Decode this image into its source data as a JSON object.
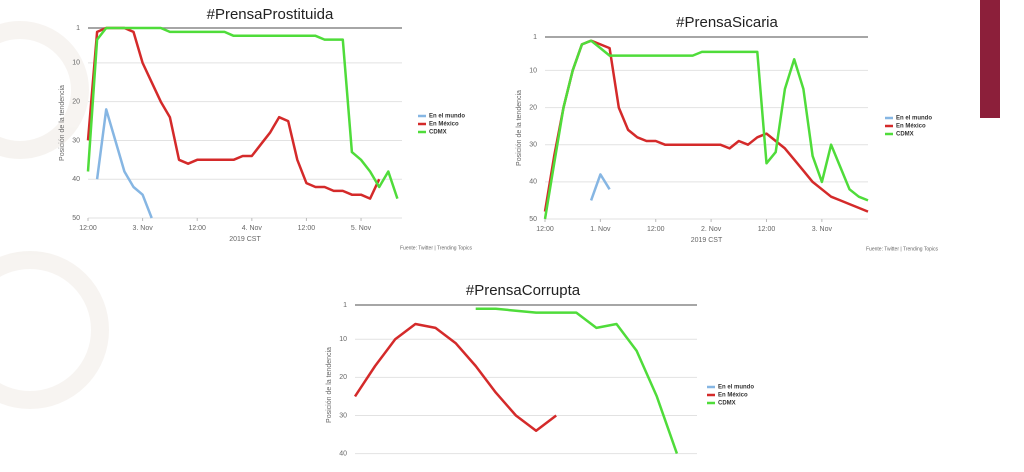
{
  "chart_data": [
    {
      "type": "line",
      "title": "#PrensaProstituida",
      "y_label": "Posición de la tendencia",
      "x_label": "2019 CST",
      "source": "Fuente: Twitter | Trending Topics",
      "x": [
        0,
        2,
        4,
        6,
        8,
        10,
        12,
        14,
        16,
        18,
        20,
        22,
        24,
        26,
        28,
        30,
        32,
        34,
        36,
        38,
        40,
        42,
        44,
        46,
        48,
        50,
        52,
        54,
        56,
        58,
        60,
        62,
        64,
        66,
        68
      ],
      "xlim": [
        0,
        69
      ],
      "ylim": [
        50,
        1
      ],
      "yticks": [
        1,
        10,
        20,
        30,
        40,
        50
      ],
      "grid": true,
      "xticks": [
        {
          "value": 0,
          "label": "12:00"
        },
        {
          "value": 12,
          "label": "3. Nov"
        },
        {
          "value": 24,
          "label": "12:00"
        },
        {
          "value": 36,
          "label": "4. Nov"
        },
        {
          "value": 48,
          "label": "12:00"
        },
        {
          "value": 60,
          "label": "5. Nov"
        }
      ],
      "series": [
        {
          "name": "En el mundo",
          "color": "#86b6e3",
          "values": [
            null,
            40,
            22,
            30,
            38,
            42,
            44,
            50,
            null,
            null,
            null,
            null,
            null,
            null,
            null,
            null,
            null,
            null,
            null,
            null,
            null,
            null,
            null,
            null,
            null,
            null,
            null,
            null,
            null,
            null,
            null,
            null,
            null,
            null,
            null
          ]
        },
        {
          "name": "En México",
          "color": "#d42a2a",
          "values": [
            30,
            2,
            1,
            1,
            1,
            2,
            10,
            15,
            20,
            24,
            35,
            36,
            35,
            35,
            35,
            35,
            35,
            34,
            34,
            31,
            28,
            24,
            25,
            35,
            41,
            42,
            42,
            43,
            43,
            44,
            44,
            45,
            40,
            null,
            null
          ]
        },
        {
          "name": "CDMX",
          "color": "#4fdc3a",
          "values": [
            38,
            4,
            1,
            1,
            1,
            1,
            1,
            1,
            1,
            2,
            2,
            2,
            2,
            2,
            2,
            2,
            3,
            3,
            3,
            3,
            3,
            3,
            3,
            3,
            3,
            3,
            4,
            4,
            4,
            33,
            35,
            38,
            42,
            38,
            45
          ]
        }
      ]
    },
    {
      "type": "line",
      "title": "#PrensaSicaria",
      "y_label": "Posición de la tendencia",
      "x_label": "2019 CST",
      "source": "Fuente: Twitter | Trending Topics",
      "x": [
        0,
        2,
        4,
        6,
        8,
        10,
        12,
        14,
        16,
        18,
        20,
        22,
        24,
        26,
        28,
        30,
        32,
        34,
        36,
        38,
        40,
        42,
        44,
        46,
        48,
        50,
        52,
        54,
        56,
        58,
        60,
        62,
        64,
        66,
        68,
        70
      ],
      "xlim": [
        0,
        70
      ],
      "ylim": [
        50,
        1
      ],
      "yticks": [
        1,
        10,
        20,
        30,
        40,
        50
      ],
      "grid": true,
      "xticks": [
        {
          "value": 0,
          "label": "12:00"
        },
        {
          "value": 12,
          "label": "1. Nov"
        },
        {
          "value": 24,
          "label": "12:00"
        },
        {
          "value": 36,
          "label": "2. Nov"
        },
        {
          "value": 48,
          "label": "12:00"
        },
        {
          "value": 60,
          "label": "3. Nov"
        }
      ],
      "series": [
        {
          "name": "En el mundo",
          "color": "#86b6e3",
          "values": [
            null,
            null,
            null,
            null,
            null,
            45,
            38,
            42,
            null,
            null,
            null,
            null,
            null,
            null,
            null,
            null,
            null,
            null,
            null,
            null,
            null,
            null,
            null,
            null,
            null,
            null,
            null,
            null,
            null,
            null,
            null,
            null,
            null,
            null,
            null,
            null
          ]
        },
        {
          "name": "En México",
          "color": "#d42a2a",
          "values": [
            48,
            33,
            20,
            10,
            3,
            2,
            3,
            4,
            20,
            26,
            28,
            29,
            29,
            30,
            30,
            30,
            30,
            30,
            30,
            30,
            31,
            29,
            30,
            28,
            27,
            29,
            31,
            34,
            37,
            40,
            42,
            44,
            45,
            46,
            47,
            48
          ]
        },
        {
          "name": "CDMX",
          "color": "#4fdc3a",
          "values": [
            50,
            35,
            20,
            10,
            3,
            2,
            4,
            6,
            6,
            6,
            6,
            6,
            6,
            6,
            6,
            6,
            6,
            5,
            5,
            5,
            5,
            5,
            5,
            5,
            35,
            32,
            15,
            7,
            15,
            33,
            40,
            30,
            36,
            42,
            44,
            45
          ]
        }
      ]
    },
    {
      "type": "line",
      "title": "#PrensaCorrupta",
      "y_label": "Posición de la tendencia",
      "x": [
        0,
        2,
        4,
        6,
        8,
        10,
        12,
        14,
        16,
        18,
        20,
        22,
        24,
        26,
        28,
        30,
        32
      ],
      "xlim": [
        0,
        34
      ],
      "ylim": [
        43,
        1
      ],
      "yticks": [
        1,
        10,
        20,
        30,
        40
      ],
      "grid": true,
      "series": [
        {
          "name": "En el mundo",
          "color": "#86b6e3",
          "values": [
            null,
            null,
            null,
            null,
            null,
            null,
            null,
            null,
            null,
            null,
            null,
            null,
            null,
            null,
            null,
            null,
            null
          ]
        },
        {
          "name": "En México",
          "color": "#d42a2a",
          "values": [
            25,
            17,
            10,
            6,
            7,
            11,
            17,
            24,
            30,
            34,
            30,
            null,
            null,
            null,
            null,
            null,
            null
          ]
        },
        {
          "name": "CDMX",
          "color": "#4fdc3a",
          "values": [
            null,
            null,
            null,
            null,
            null,
            null,
            2,
            2,
            2.5,
            3,
            3,
            3,
            7,
            6,
            13,
            25,
            40
          ]
        }
      ]
    }
  ]
}
